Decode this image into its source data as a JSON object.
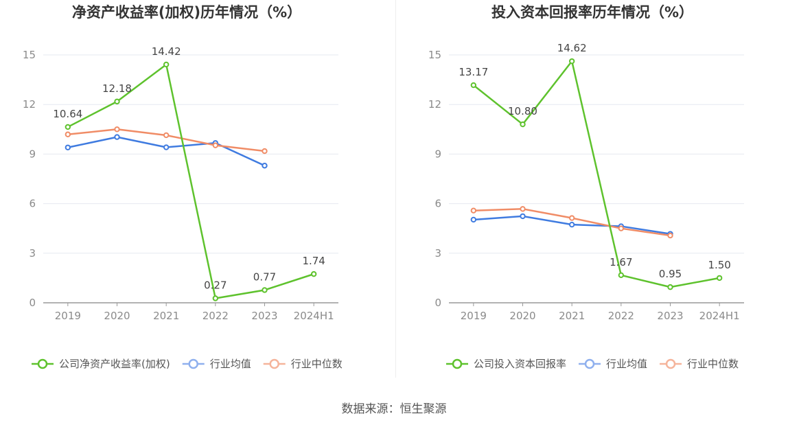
{
  "source_label": "数据来源：恒生聚源",
  "chart_data": [
    {
      "type": "line",
      "title": "净资产收益率(加权)历年情况（%）",
      "categories": [
        "2019",
        "2020",
        "2021",
        "2022",
        "2023",
        "2024H1"
      ],
      "yticks": [
        0,
        3,
        6,
        9,
        12,
        15
      ],
      "ylim": [
        0,
        15
      ],
      "grid": true,
      "legend_position": "bottom",
      "series": [
        {
          "name": "公司净资产收益率(加权)",
          "color": "#5ec22d",
          "values": [
            10.64,
            12.18,
            14.42,
            0.27,
            0.77,
            1.74
          ],
          "labels": [
            "10.64",
            "12.18",
            "14.42",
            "0.27",
            "0.77",
            "1.74"
          ],
          "show_labels": true
        },
        {
          "name": "行业均值",
          "color": "#3f7be0",
          "values": [
            9.4,
            10.03,
            9.41,
            9.67,
            8.3,
            null
          ],
          "show_labels": false
        },
        {
          "name": "行业中位数",
          "color": "#f08c66",
          "values": [
            10.19,
            10.5,
            10.14,
            9.53,
            9.18,
            null
          ],
          "show_labels": false
        }
      ]
    },
    {
      "type": "line",
      "title": "投入资本回报率历年情况（%）",
      "categories": [
        "2019",
        "2020",
        "2021",
        "2022",
        "2023",
        "2024H1"
      ],
      "yticks": [
        0,
        3,
        6,
        9,
        12,
        15
      ],
      "ylim": [
        0,
        15
      ],
      "grid": true,
      "legend_position": "bottom",
      "series": [
        {
          "name": "公司投入资本回报率",
          "color": "#5ec22d",
          "values": [
            13.17,
            10.8,
            14.62,
            1.67,
            0.95,
            1.5
          ],
          "labels": [
            "13.17",
            "10.80",
            "14.62",
            "1.67",
            "0.95",
            "1.50"
          ],
          "show_labels": true
        },
        {
          "name": "行业均值",
          "color": "#3f7be0",
          "values": [
            5.03,
            5.24,
            4.73,
            4.63,
            4.17,
            null
          ],
          "show_labels": false
        },
        {
          "name": "行业中位数",
          "color": "#f08c66",
          "values": [
            5.58,
            5.68,
            5.13,
            4.5,
            4.07,
            null
          ],
          "show_labels": false
        }
      ]
    }
  ]
}
